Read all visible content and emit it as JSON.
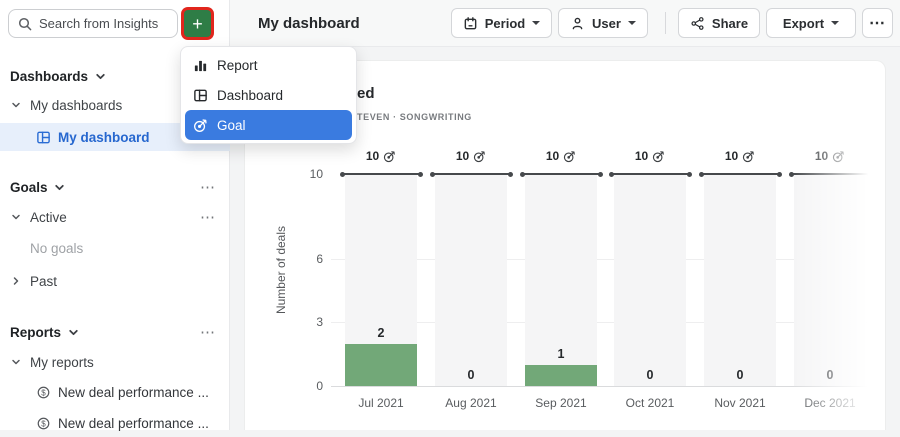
{
  "topbar": {
    "title": "My dashboard",
    "period_button": "Period",
    "user_button": "User",
    "share_button": "Share",
    "export_button": "Export",
    "more_button": "⋯"
  },
  "sidebar": {
    "search_placeholder": "Search from Insights",
    "add_button": "+",
    "menu_dots": "⋯",
    "dashboards": {
      "header": "Dashboards",
      "group": "My dashboards",
      "selected_item": "My dashboard"
    },
    "goals": {
      "header": "Goals",
      "group": "Active",
      "empty_text": "No goals",
      "collapsed_group": "Past"
    },
    "reports": {
      "header": "Reports",
      "group": "My reports",
      "items": [
        "New deal performance ...",
        "New deal performance ..."
      ]
    }
  },
  "add_menu": {
    "items": [
      {
        "label": "Report",
        "icon": "bar-chart-icon",
        "selected": false
      },
      {
        "label": "Dashboard",
        "icon": "dashboard-grid-icon",
        "selected": false
      },
      {
        "label": "Goal",
        "icon": "goal-target-icon",
        "selected": true
      }
    ]
  },
  "card": {
    "title_visible_fragment": "ed",
    "subtitle_visible_fragment": "TEVEN · SONGWRITING"
  },
  "chart_data": {
    "type": "bar",
    "title": "partially occluded by dropdown (visible: \"ed\")",
    "categories": [
      "Jul 2021",
      "Aug 2021",
      "Sep 2021",
      "Oct 2021",
      "Nov 2021",
      "Dec 2021"
    ],
    "values": [
      2,
      0,
      1,
      0,
      0,
      0
    ],
    "goal_series": {
      "name": "Goal",
      "values": [
        10,
        10,
        10,
        10,
        10,
        10
      ]
    },
    "ylabel": "Number of deals",
    "xlabel": "",
    "yticks": [
      0,
      3,
      6,
      10
    ],
    "ylim": [
      0,
      10
    ],
    "grid": true,
    "legend": "none",
    "bar_color": "#72a878",
    "goal_line_color": "#46494c",
    "column_stripe_color": "#f5f5f6"
  },
  "colors": {
    "add_button_green": "#2e7d46",
    "annotation_highlight_red": "#e1261d",
    "selected_menu_blue": "#3a7be0",
    "selected_sidebar_bg": "#e7effb",
    "selected_sidebar_text": "#2667cf",
    "bar_green": "#72a878"
  }
}
